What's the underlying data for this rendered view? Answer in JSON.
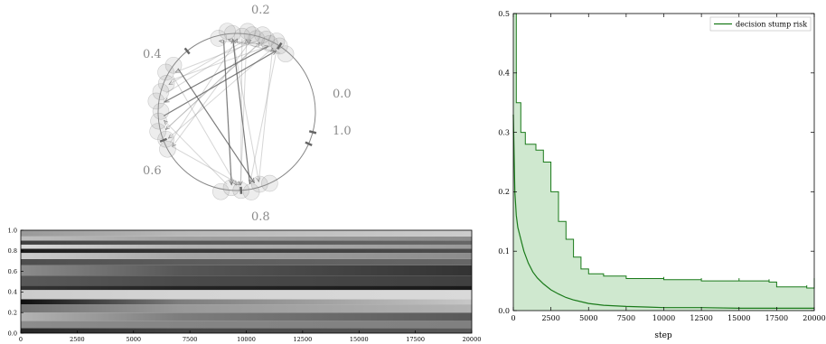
{
  "chart_data": [
    {
      "type": "scatter",
      "panel": "circle-diagram",
      "title": "",
      "labels": [
        "0.0",
        "0.2",
        "0.4",
        "0.6",
        "0.8",
        "1.0"
      ],
      "label_positions_on_unit_interval": [
        0.0,
        0.2,
        0.4,
        0.6,
        0.8,
        1.0
      ],
      "annotations": "semi-transparent grey points clustered on a circle near 0.2–0.3, 0.45–0.65 and 0.75–0.85, connected by grey arrows"
    },
    {
      "type": "heatmap",
      "panel": "grayscale-strip",
      "title": "",
      "xlabel": "",
      "ylabel": "",
      "xlim": [
        0,
        20000
      ],
      "ylim": [
        0.0,
        1.0
      ],
      "x_ticks": [
        "0",
        "2500",
        "5000",
        "7500",
        "10000",
        "12500",
        "15000",
        "17500",
        "20000"
      ],
      "y_ticks": [
        "0.0",
        "0.2",
        "0.4",
        "0.6",
        "0.8",
        "1.0"
      ],
      "colormap": "grayscale",
      "bands": [
        {
          "y0": 0.0,
          "y1": 0.05,
          "shade_start": 0.15,
          "shade_end": 0.35
        },
        {
          "y0": 0.05,
          "y1": 0.12,
          "shade_start": 0.55,
          "shade_end": 0.5
        },
        {
          "y0": 0.12,
          "y1": 0.2,
          "shade_start": 0.7,
          "shade_end": 0.35
        },
        {
          "y0": 0.2,
          "y1": 0.28,
          "shade_start": 0.45,
          "shade_end": 0.7
        },
        {
          "y0": 0.28,
          "y1": 0.33,
          "shade_start": 0.05,
          "shade_end": 0.78
        },
        {
          "y0": 0.33,
          "y1": 0.42,
          "shade_start": 0.8,
          "shade_end": 0.85
        },
        {
          "y0": 0.42,
          "y1": 0.46,
          "shade_start": 0.2,
          "shade_end": 0.1
        },
        {
          "y0": 0.46,
          "y1": 0.56,
          "shade_start": 0.35,
          "shade_end": 0.25
        },
        {
          "y0": 0.56,
          "y1": 0.66,
          "shade_start": 0.55,
          "shade_end": 0.2
        },
        {
          "y0": 0.66,
          "y1": 0.72,
          "shade_start": 0.3,
          "shade_end": 0.4
        },
        {
          "y0": 0.72,
          "y1": 0.78,
          "shade_start": 0.8,
          "shade_end": 0.55
        },
        {
          "y0": 0.78,
          "y1": 0.82,
          "shade_start": 0.1,
          "shade_end": 0.3
        },
        {
          "y0": 0.82,
          "y1": 0.86,
          "shade_start": 0.85,
          "shade_end": 0.6
        },
        {
          "y0": 0.86,
          "y1": 0.9,
          "shade_start": 0.25,
          "shade_end": 0.4
        },
        {
          "y0": 0.9,
          "y1": 0.94,
          "shade_start": 0.75,
          "shade_end": 0.55
        },
        {
          "y0": 0.94,
          "y1": 1.0,
          "shade_start": 0.6,
          "shade_end": 0.8
        }
      ]
    },
    {
      "type": "line",
      "panel": "risk-plot",
      "title": "",
      "xlabel": "step",
      "ylabel": "",
      "xlim": [
        0,
        20000
      ],
      "ylim": [
        0.0,
        0.5
      ],
      "x_ticks": [
        "0",
        "2500",
        "5000",
        "7500",
        "10000",
        "12500",
        "15000",
        "17500",
        "20000"
      ],
      "y_ticks": [
        "0.0",
        "0.1",
        "0.2",
        "0.3",
        "0.4",
        "0.5"
      ],
      "legend": "top-right",
      "grid": false,
      "colors": {
        "line": "#1a7a1a",
        "fill": "#cfe8cf"
      },
      "series": [
        {
          "name": "decision stump risk",
          "x": [
            0,
            100,
            200,
            300,
            500,
            700,
            1000,
            1300,
            1600,
            2000,
            2500,
            3000,
            3500,
            4000,
            5000,
            6000,
            7500,
            9000,
            10000,
            12500,
            15000,
            17500,
            20000
          ],
          "values": [
            0.33,
            0.2,
            0.16,
            0.14,
            0.12,
            0.1,
            0.08,
            0.065,
            0.055,
            0.045,
            0.035,
            0.028,
            0.022,
            0.018,
            0.012,
            0.009,
            0.007,
            0.006,
            0.005,
            0.005,
            0.004,
            0.004,
            0.004
          ]
        },
        {
          "band": "upper",
          "x": [
            0,
            200,
            500,
            800,
            1000,
            1500,
            2000,
            2500,
            3000,
            3500,
            4000,
            4500,
            5000,
            6000,
            7500,
            10000,
            12500,
            15000,
            17000,
            17500,
            19500,
            20000
          ],
          "values": [
            0.5,
            0.35,
            0.3,
            0.28,
            0.28,
            0.27,
            0.25,
            0.2,
            0.15,
            0.12,
            0.09,
            0.07,
            0.062,
            0.058,
            0.054,
            0.052,
            0.05,
            0.05,
            0.048,
            0.04,
            0.038,
            0.05
          ]
        }
      ]
    }
  ]
}
